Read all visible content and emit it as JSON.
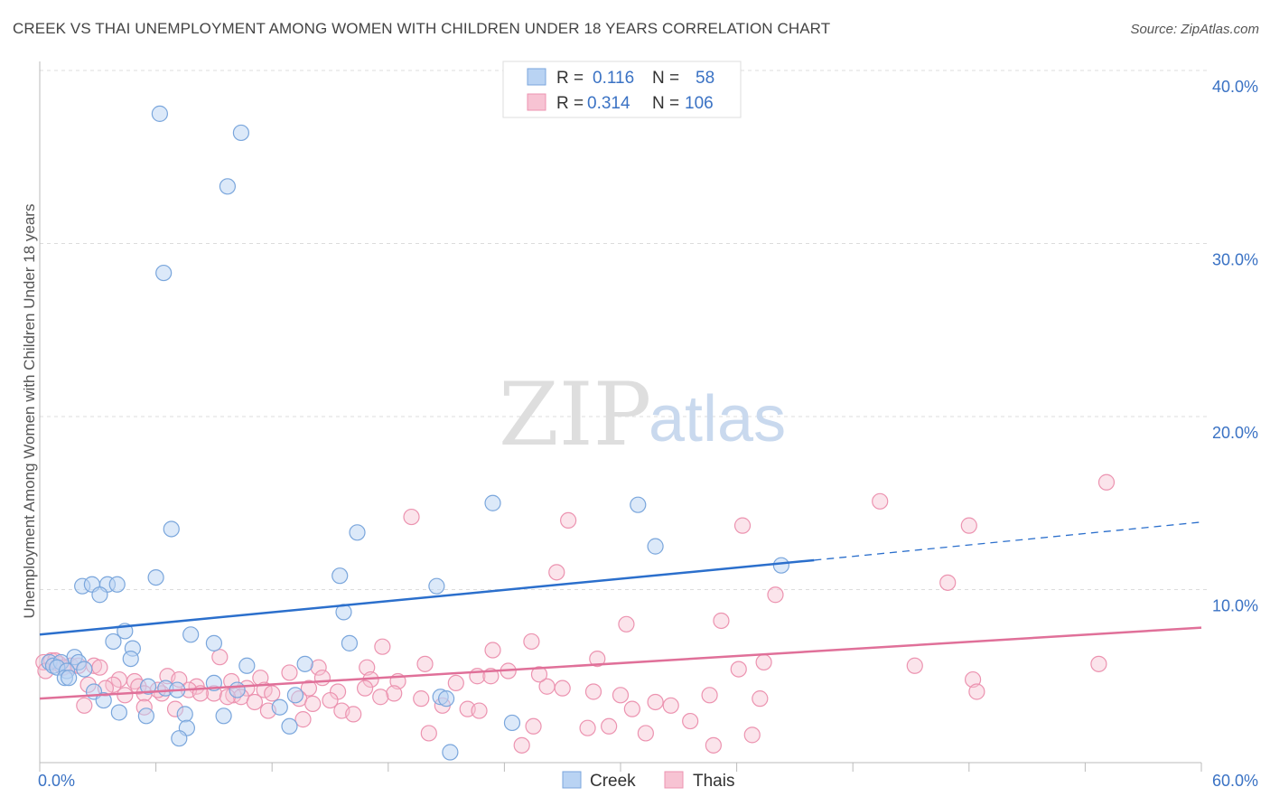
{
  "title": "CREEK VS THAI UNEMPLOYMENT AMONG WOMEN WITH CHILDREN UNDER 18 YEARS CORRELATION CHART",
  "source": "Source: ZipAtlas.com",
  "watermark": {
    "zip": "ZIP",
    "atlas": "atlas"
  },
  "legend_top": [
    {
      "r_label": "R =",
      "r_value": "0.116",
      "n_label": "N =",
      "n_value": "58"
    },
    {
      "r_label": "R =",
      "r_value": "0.314",
      "n_label": "N =",
      "n_value": "106"
    }
  ],
  "legend_bottom": [
    "Creek",
    "Thais"
  ],
  "colors": {
    "creek_fill": "#b9d3f3",
    "creek_stroke": "#7aa6dc",
    "creek_line": "#2b6fcc",
    "thai_fill": "#f7c3d3",
    "thai_stroke": "#ec93b0",
    "thai_line": "#e07099",
    "tick_text": "#3a72c4"
  },
  "chart_data": {
    "type": "scatter",
    "title": "CREEK VS THAI UNEMPLOYMENT AMONG WOMEN WITH CHILDREN UNDER 18 YEARS CORRELATION CHART",
    "xlabel": "",
    "ylabel": "Unemployment Among Women with Children Under 18 years",
    "xlim": [
      0,
      60
    ],
    "ylim": [
      0,
      40
    ],
    "x_tick_labels": [
      "0.0%",
      "60.0%"
    ],
    "y_ticks": [
      10,
      20,
      30,
      40
    ],
    "y_tick_labels": [
      "10.0%",
      "20.0%",
      "30.0%",
      "40.0%"
    ],
    "grid": true,
    "legend_position": "top-center",
    "series": [
      {
        "name": "Creek",
        "r": 0.116,
        "n": 58,
        "trend": {
          "x0": 0,
          "y0": 7.4,
          "x1": 40,
          "y1": 11.7,
          "dashed_to_x": 60,
          "dashed_to_y": 13.9
        },
        "points": [
          [
            6.2,
            37.5
          ],
          [
            10.4,
            36.4
          ],
          [
            9.7,
            33.3
          ],
          [
            6.4,
            28.3
          ],
          [
            23.4,
            15.0
          ],
          [
            30.9,
            14.9
          ],
          [
            6.8,
            13.5
          ],
          [
            16.4,
            13.3
          ],
          [
            31.8,
            12.5
          ],
          [
            38.3,
            11.4
          ],
          [
            6.0,
            10.7
          ],
          [
            15.5,
            10.8
          ],
          [
            2.2,
            10.2
          ],
          [
            2.7,
            10.3
          ],
          [
            3.5,
            10.3
          ],
          [
            4.0,
            10.3
          ],
          [
            20.5,
            10.2
          ],
          [
            3.1,
            9.7
          ],
          [
            15.7,
            8.7
          ],
          [
            4.4,
            7.6
          ],
          [
            7.8,
            7.4
          ],
          [
            3.8,
            7.0
          ],
          [
            9.0,
            6.9
          ],
          [
            16.0,
            6.9
          ],
          [
            4.8,
            6.6
          ],
          [
            1.8,
            6.1
          ],
          [
            4.7,
            6.0
          ],
          [
            0.5,
            5.8
          ],
          [
            0.7,
            5.6
          ],
          [
            1.1,
            5.8
          ],
          [
            2.0,
            5.8
          ],
          [
            0.9,
            5.5
          ],
          [
            1.4,
            5.3
          ],
          [
            2.3,
            5.4
          ],
          [
            10.7,
            5.6
          ],
          [
            13.7,
            5.7
          ],
          [
            1.3,
            4.9
          ],
          [
            1.5,
            4.9
          ],
          [
            9.0,
            4.6
          ],
          [
            5.6,
            4.4
          ],
          [
            6.5,
            4.3
          ],
          [
            7.1,
            4.2
          ],
          [
            10.2,
            4.2
          ],
          [
            2.8,
            4.1
          ],
          [
            13.2,
            3.9
          ],
          [
            20.7,
            3.8
          ],
          [
            21.0,
            3.7
          ],
          [
            3.3,
            3.6
          ],
          [
            12.4,
            3.2
          ],
          [
            4.1,
            2.9
          ],
          [
            5.5,
            2.7
          ],
          [
            7.5,
            2.8
          ],
          [
            9.5,
            2.7
          ],
          [
            12.9,
            2.1
          ],
          [
            24.4,
            2.3
          ],
          [
            7.6,
            2.0
          ],
          [
            7.2,
            1.4
          ],
          [
            21.2,
            0.6
          ]
        ]
      },
      {
        "name": "Thais",
        "r": 0.314,
        "n": 106,
        "trend": {
          "x0": 0,
          "y0": 3.7,
          "x1": 60,
          "y1": 7.8
        },
        "points": [
          [
            55.1,
            16.2
          ],
          [
            43.4,
            15.1
          ],
          [
            48.0,
            13.7
          ],
          [
            36.3,
            13.7
          ],
          [
            19.2,
            14.2
          ],
          [
            27.3,
            14.0
          ],
          [
            26.7,
            11.0
          ],
          [
            46.9,
            10.4
          ],
          [
            38.0,
            9.7
          ],
          [
            35.2,
            8.2
          ],
          [
            30.3,
            8.0
          ],
          [
            25.4,
            7.0
          ],
          [
            17.7,
            6.7
          ],
          [
            23.4,
            6.5
          ],
          [
            9.3,
            6.1
          ],
          [
            28.8,
            6.0
          ],
          [
            0.2,
            5.8
          ],
          [
            0.6,
            5.9
          ],
          [
            1.0,
            5.7
          ],
          [
            2.8,
            5.6
          ],
          [
            37.4,
            5.8
          ],
          [
            45.2,
            5.6
          ],
          [
            54.7,
            5.7
          ],
          [
            19.9,
            5.7
          ],
          [
            14.4,
            5.5
          ],
          [
            16.9,
            5.5
          ],
          [
            36.1,
            5.4
          ],
          [
            24.2,
            5.3
          ],
          [
            22.6,
            5.0
          ],
          [
            23.3,
            5.0
          ],
          [
            12.9,
            5.2
          ],
          [
            14.6,
            4.9
          ],
          [
            6.6,
            5.0
          ],
          [
            7.2,
            4.8
          ],
          [
            9.9,
            4.7
          ],
          [
            4.1,
            4.8
          ],
          [
            4.9,
            4.7
          ],
          [
            11.4,
            4.9
          ],
          [
            17.1,
            4.8
          ],
          [
            18.5,
            4.7
          ],
          [
            21.5,
            4.6
          ],
          [
            48.2,
            4.8
          ],
          [
            2.5,
            4.5
          ],
          [
            3.8,
            4.5
          ],
          [
            8.1,
            4.4
          ],
          [
            26.2,
            4.4
          ],
          [
            27.0,
            4.3
          ],
          [
            5.1,
            4.4
          ],
          [
            7.7,
            4.2
          ],
          [
            10.7,
            4.3
          ],
          [
            11.6,
            4.2
          ],
          [
            13.9,
            4.3
          ],
          [
            15.4,
            4.1
          ],
          [
            48.4,
            4.1
          ],
          [
            5.4,
            4.0
          ],
          [
            6.3,
            4.0
          ],
          [
            9.0,
            4.0
          ],
          [
            10.0,
            3.9
          ],
          [
            12.0,
            4.0
          ],
          [
            18.3,
            4.0
          ],
          [
            28.6,
            4.1
          ],
          [
            30.0,
            3.9
          ],
          [
            34.6,
            3.9
          ],
          [
            4.4,
            3.9
          ],
          [
            10.4,
            3.8
          ],
          [
            13.4,
            3.7
          ],
          [
            17.6,
            3.8
          ],
          [
            19.7,
            3.7
          ],
          [
            37.2,
            3.7
          ],
          [
            11.1,
            3.5
          ],
          [
            14.1,
            3.4
          ],
          [
            31.8,
            3.5
          ],
          [
            20.8,
            3.3
          ],
          [
            22.1,
            3.1
          ],
          [
            30.6,
            3.1
          ],
          [
            2.3,
            3.3
          ],
          [
            5.4,
            3.2
          ],
          [
            7.0,
            3.1
          ],
          [
            11.8,
            3.0
          ],
          [
            15.6,
            3.0
          ],
          [
            13.6,
            2.5
          ],
          [
            16.2,
            2.8
          ],
          [
            22.7,
            3.0
          ],
          [
            33.6,
            2.4
          ],
          [
            25.5,
            2.1
          ],
          [
            28.3,
            2.0
          ],
          [
            29.4,
            2.1
          ],
          [
            31.3,
            1.7
          ],
          [
            36.8,
            1.6
          ],
          [
            20.1,
            1.7
          ],
          [
            24.9,
            1.0
          ],
          [
            34.8,
            1.0
          ],
          [
            0.3,
            5.3
          ],
          [
            0.8,
            5.9
          ],
          [
            1.6,
            5.6
          ],
          [
            2.0,
            5.6
          ],
          [
            3.1,
            5.5
          ],
          [
            1.2,
            5.5
          ],
          [
            3.4,
            4.3
          ],
          [
            8.3,
            4.0
          ],
          [
            6.1,
            4.2
          ],
          [
            15.0,
            3.6
          ],
          [
            32.6,
            3.3
          ],
          [
            9.7,
            3.8
          ],
          [
            16.8,
            4.3
          ],
          [
            25.8,
            5.1
          ]
        ]
      }
    ]
  }
}
